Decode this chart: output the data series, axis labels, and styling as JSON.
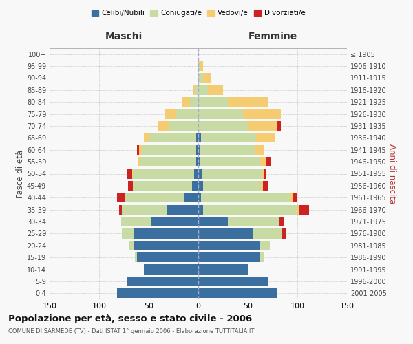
{
  "age_groups": [
    "0-4",
    "5-9",
    "10-14",
    "15-19",
    "20-24",
    "25-29",
    "30-34",
    "35-39",
    "40-44",
    "45-49",
    "50-54",
    "55-59",
    "60-64",
    "65-69",
    "70-74",
    "75-79",
    "80-84",
    "85-89",
    "90-94",
    "95-99",
    "100+"
  ],
  "birth_years": [
    "2001-2005",
    "1996-2000",
    "1991-1995",
    "1986-1990",
    "1981-1985",
    "1976-1980",
    "1971-1975",
    "1966-1970",
    "1961-1965",
    "1956-1960",
    "1951-1955",
    "1946-1950",
    "1941-1945",
    "1936-1940",
    "1931-1935",
    "1926-1930",
    "1921-1925",
    "1916-1920",
    "1911-1915",
    "1906-1910",
    "≤ 1905"
  ],
  "males": {
    "celibi": [
      82,
      72,
      55,
      62,
      65,
      65,
      48,
      32,
      14,
      6,
      4,
      2,
      2,
      2,
      0,
      0,
      0,
      0,
      0,
      0,
      0
    ],
    "coniugati": [
      0,
      0,
      0,
      2,
      5,
      12,
      30,
      45,
      60,
      60,
      62,
      57,
      55,
      48,
      30,
      22,
      8,
      3,
      1,
      1,
      0
    ],
    "vedovi": [
      0,
      0,
      0,
      0,
      0,
      0,
      0,
      0,
      0,
      0,
      1,
      2,
      3,
      5,
      10,
      12,
      8,
      2,
      0,
      0,
      0
    ],
    "divorziati": [
      0,
      0,
      0,
      0,
      0,
      0,
      0,
      3,
      8,
      5,
      5,
      0,
      2,
      0,
      0,
      0,
      0,
      0,
      0,
      0,
      0
    ]
  },
  "females": {
    "nubili": [
      80,
      70,
      50,
      62,
      62,
      55,
      30,
      5,
      3,
      5,
      4,
      2,
      2,
      3,
      0,
      0,
      0,
      0,
      0,
      0,
      0
    ],
    "coniugate": [
      0,
      0,
      0,
      5,
      10,
      30,
      52,
      95,
      90,
      58,
      60,
      60,
      55,
      55,
      50,
      45,
      30,
      10,
      5,
      2,
      0
    ],
    "vedove": [
      0,
      0,
      0,
      0,
      0,
      0,
      0,
      2,
      2,
      2,
      3,
      6,
      10,
      20,
      30,
      38,
      40,
      15,
      8,
      3,
      0
    ],
    "divorziate": [
      0,
      0,
      0,
      0,
      0,
      3,
      5,
      10,
      5,
      6,
      2,
      5,
      0,
      0,
      3,
      0,
      0,
      0,
      0,
      0,
      0
    ]
  },
  "colors": {
    "celibi": "#3b6fa0",
    "coniugati": "#c8dba4",
    "vedovi": "#f5cc72",
    "divorziati": "#cc2222"
  },
  "title": "Popolazione per età, sesso e stato civile - 2006",
  "subtitle": "COMUNE DI SARMEDE (TV) - Dati ISTAT 1° gennaio 2006 - Elaborazione TUTTITALIA.IT",
  "xlabel_left": "Maschi",
  "xlabel_right": "Femmine",
  "ylabel_left": "Fasce di età",
  "ylabel_right": "Anni di nascita",
  "xlim": 150,
  "bg_color": "#f8f8f8",
  "grid_color": "#cccccc"
}
